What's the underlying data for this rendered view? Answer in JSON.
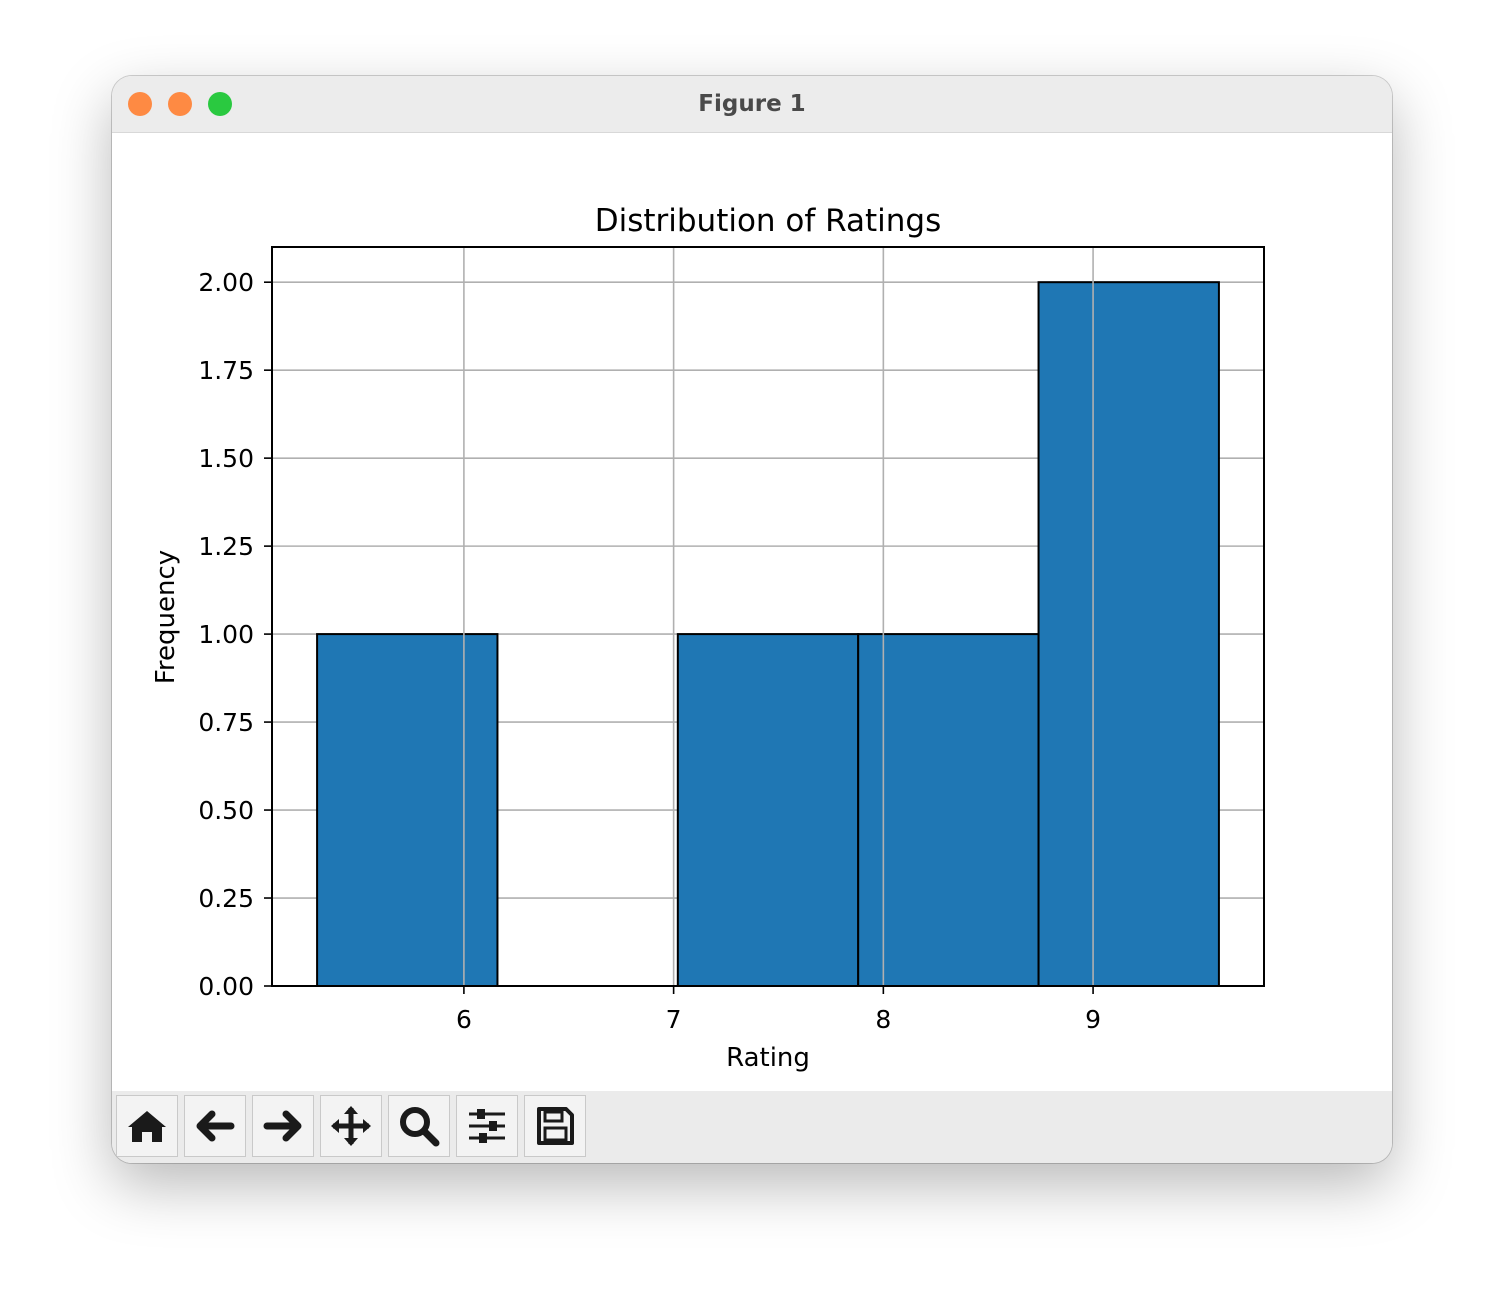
{
  "window": {
    "title": "Figure 1",
    "traffic_lights": {
      "close": "#fe8a43",
      "minimize": "#fe8a43",
      "maximize": "#2ac940"
    }
  },
  "toolbar": {
    "buttons": [
      {
        "name": "home-button",
        "icon": "home-icon"
      },
      {
        "name": "back-button",
        "icon": "arrow-left-icon"
      },
      {
        "name": "forward-button",
        "icon": "arrow-right-icon"
      },
      {
        "name": "pan-button",
        "icon": "move-icon"
      },
      {
        "name": "zoom-button",
        "icon": "magnifier-icon"
      },
      {
        "name": "configure-subplots-button",
        "icon": "sliders-icon"
      },
      {
        "name": "save-button",
        "icon": "floppy-disk-icon"
      }
    ]
  },
  "chart_data": {
    "type": "bar",
    "title": "Distribution of Ratings",
    "xlabel": "Rating",
    "ylabel": "Frequency",
    "bar_color": "#1f77b4",
    "edge_color": "#000000",
    "grid": true,
    "bins": [
      {
        "start": 5.3,
        "end": 6.16,
        "count": 1
      },
      {
        "start": 6.16,
        "end": 7.02,
        "count": 0
      },
      {
        "start": 7.02,
        "end": 7.88,
        "count": 1
      },
      {
        "start": 7.88,
        "end": 8.74,
        "count": 1
      },
      {
        "start": 8.74,
        "end": 9.6,
        "count": 2
      }
    ],
    "xlim": [
      5.085,
      9.815
    ],
    "ylim": [
      0,
      2.1
    ],
    "xticks": [
      6,
      7,
      8,
      9
    ],
    "xtick_labels": [
      "6",
      "7",
      "8",
      "9"
    ],
    "yticks": [
      0,
      0.25,
      0.5,
      0.75,
      1.0,
      1.25,
      1.5,
      1.75,
      2.0
    ],
    "ytick_labels": [
      "0.00",
      "0.25",
      "0.50",
      "0.75",
      "1.00",
      "1.25",
      "1.50",
      "1.75",
      "2.00"
    ]
  }
}
